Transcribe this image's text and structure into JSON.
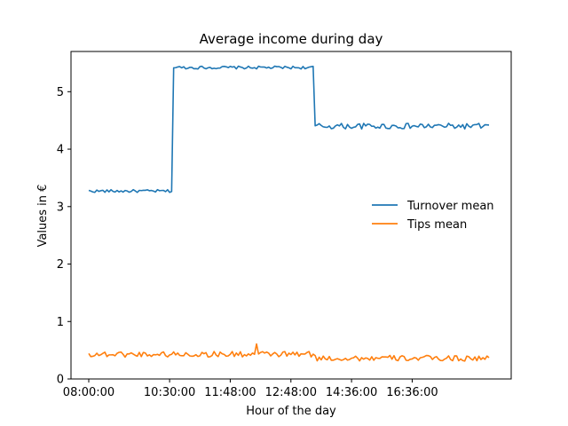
{
  "chart_data": {
    "type": "line",
    "title": "Average income during day",
    "xlabel": "Hour of the day",
    "ylabel": "Values in €",
    "x_range": [
      0,
      201
    ],
    "ylim": [
      0,
      5.7
    ],
    "x_ticks": [
      {
        "x": 1,
        "label": "08:00:00"
      },
      {
        "x": 41,
        "label": "10:30:00"
      },
      {
        "x": 71,
        "label": "11:48:00"
      },
      {
        "x": 101,
        "label": "12:48:00"
      },
      {
        "x": 131,
        "label": "14:36:00"
      },
      {
        "x": 161,
        "label": "16:36:00"
      }
    ],
    "y_ticks": [
      0,
      1,
      2,
      3,
      4,
      5
    ],
    "grid": false,
    "legend_position": "center-right",
    "series": [
      {
        "name": "Turnover mean",
        "color": "#1f77b4",
        "segments": [
          {
            "x_start": 1,
            "x_end": 42,
            "mean": 3.27,
            "amp": 0.025
          },
          {
            "x_start": 43,
            "x_end": 112,
            "mean": 5.42,
            "amp": 0.025
          },
          {
            "x_start": 113,
            "x_end": 199,
            "mean": 4.4,
            "amp": 0.05
          }
        ],
        "notes": "Step series: ~3.27 from 08:00 to 10:30, jumps to ~5.42 until ~12:58, then ~4.40 to end of day"
      },
      {
        "name": "Tips mean",
        "color": "#ff7f0e",
        "segments": [
          {
            "x_start": 1,
            "x_end": 112,
            "mean": 0.43,
            "amp": 0.05
          },
          {
            "x_start": 113,
            "x_end": 199,
            "mean": 0.36,
            "amp": 0.05
          }
        ],
        "notes": "Noisy series around 0.35–0.55, max spike ~0.61 near 12:00"
      }
    ]
  }
}
